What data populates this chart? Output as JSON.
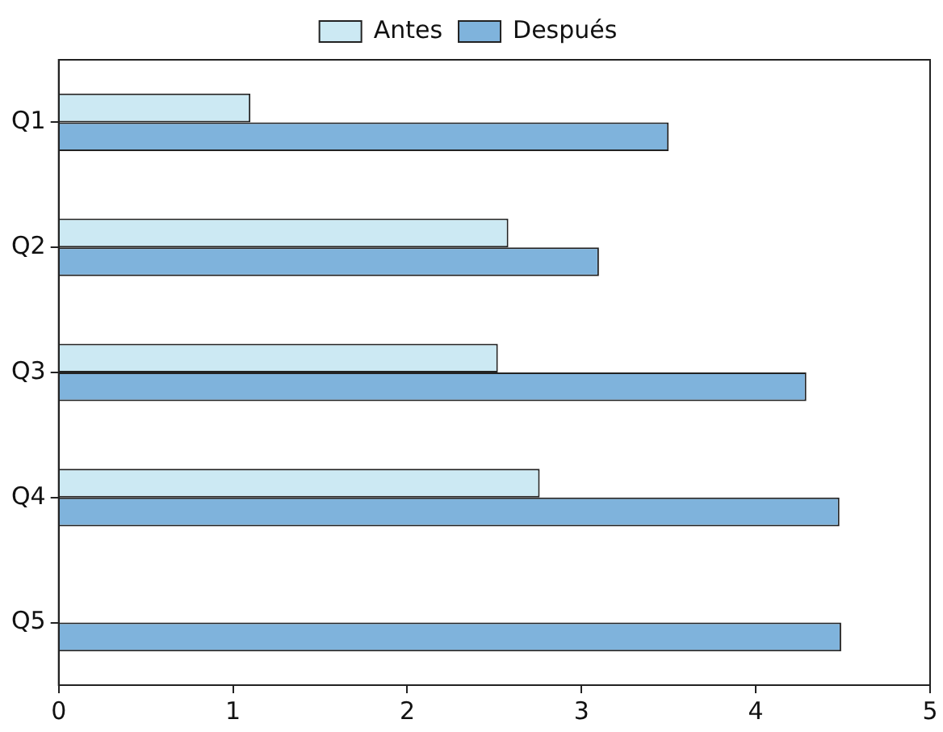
{
  "chart_data": {
    "type": "bar",
    "orientation": "horizontal",
    "categories": [
      "Q1",
      "Q2",
      "Q3",
      "Q4",
      "Q5"
    ],
    "series": [
      {
        "name": "Antes",
        "color": "#cce9f3",
        "values": [
          1.1,
          2.58,
          2.52,
          2.76,
          null
        ]
      },
      {
        "name": "Después",
        "color": "#7fb3dc",
        "values": [
          3.5,
          3.1,
          4.29,
          4.48,
          4.49
        ]
      }
    ],
    "xlim": [
      0,
      5
    ],
    "xticks": [
      0,
      1,
      2,
      3,
      4,
      5
    ],
    "grid": false,
    "legend": "top"
  }
}
